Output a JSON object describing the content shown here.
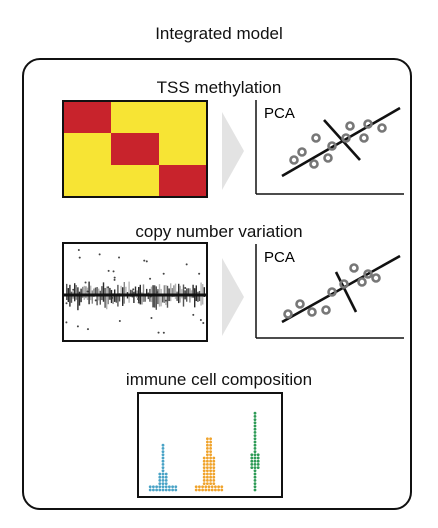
{
  "title": "Integrated model",
  "sections": {
    "tss": {
      "label": "TSS methylation",
      "pca_label": "PCA"
    },
    "cnv": {
      "label": "copy number variation",
      "pca_label": "PCA"
    },
    "immune": {
      "label": "immune cell composition"
    }
  },
  "colors": {
    "heat_red": "#c8232c",
    "heat_yellow": "#f7e434",
    "arrow_gray": "#e3e3e3",
    "scatter_blue": "#4aa3c6",
    "scatter_orange": "#f0a32b",
    "scatter_green": "#2e9b57"
  },
  "heatmap": {
    "rows": 3,
    "cols": 3,
    "cells": [
      [
        1,
        0,
        0
      ],
      [
        0,
        1,
        0
      ],
      [
        0,
        0,
        1
      ]
    ]
  }
}
